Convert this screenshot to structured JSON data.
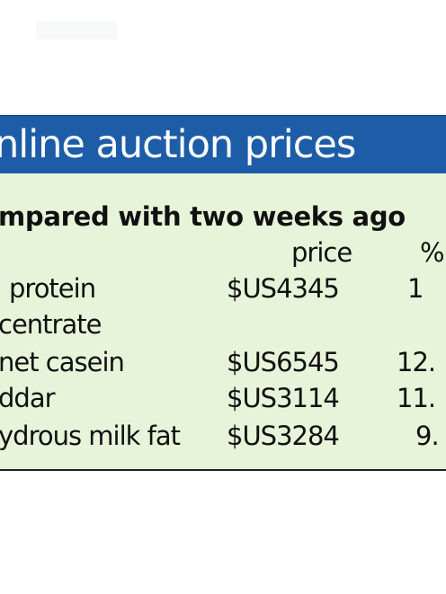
{
  "header": {
    "title": "nline auction prices",
    "subtitle": "mpared with two weeks ago"
  },
  "table": {
    "columns": [
      "price",
      "%"
    ],
    "rows": [
      {
        "label": "protein",
        "label2": "centrate",
        "price": "$US4345",
        "pct": "1"
      },
      {
        "label": "net casein",
        "price": "$US6545",
        "pct": "12."
      },
      {
        "label": "ddar",
        "price": "$US3114",
        "pct": "11."
      },
      {
        "label": "ydrous milk fat",
        "price": "$US3284",
        "pct": "9."
      }
    ]
  },
  "colors": {
    "banner": "#1d5da8",
    "panel": "#e8f4da",
    "text": "#111111"
  }
}
